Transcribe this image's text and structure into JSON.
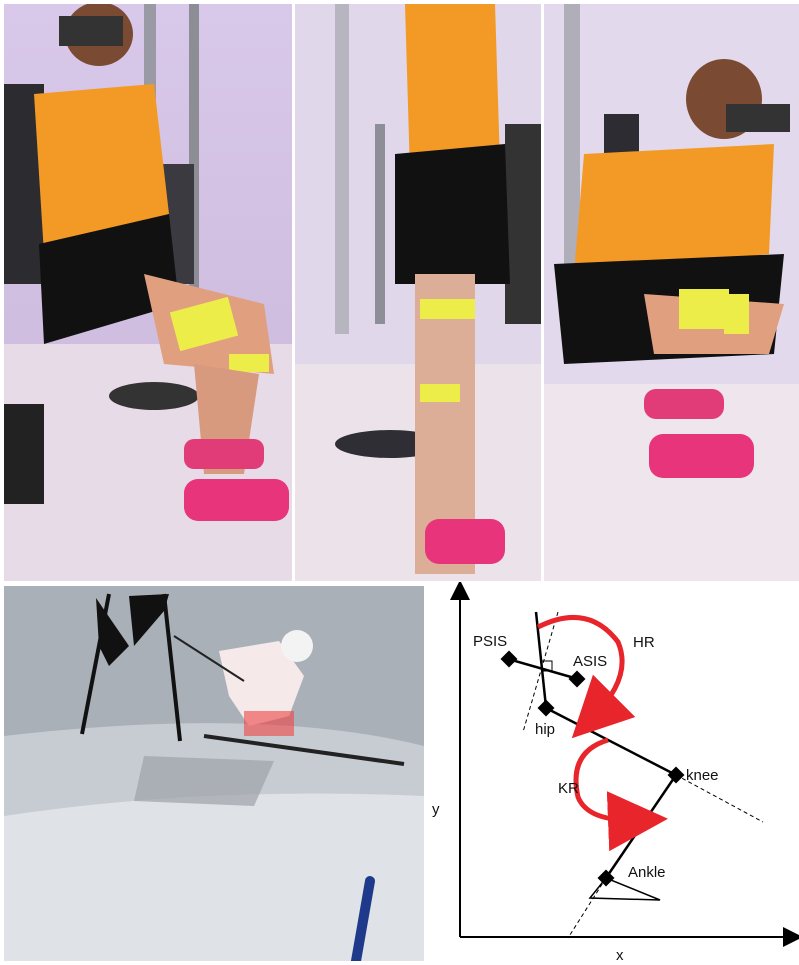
{
  "panels": {
    "squat_side": {
      "description": "Athlete in orange shirt squatting in a gym with EMG sensors on the thigh"
    },
    "standing_rear": {
      "description": "Athlete standing, viewed from behind, with EMG sensors on hamstrings and calf"
    },
    "deep_squat": {
      "description": "Athlete in deep squat position with EMG sensors"
    },
    "ski_racer": {
      "description": "Alpine ski racer in tuck position passing a gate"
    }
  },
  "diagram": {
    "labels": {
      "psis": "PSIS",
      "asis": "ASIS",
      "hip": "hip",
      "hr": "HR",
      "knee": "knee",
      "kr": "KR",
      "ankle": "Ankle",
      "y_axis": "y",
      "x_axis": "x"
    },
    "colors": {
      "arrow": "#e8252a",
      "line": "#000000"
    }
  }
}
